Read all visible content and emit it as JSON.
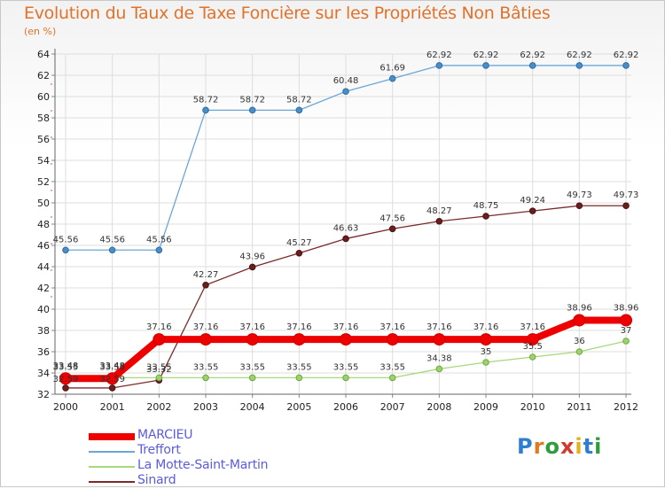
{
  "chart_data": {
    "type": "line",
    "title": "Evolution du Taux de Taxe Foncière sur les Propriétés Non Bâties",
    "unit_label": "(en %)",
    "xlabel": "",
    "ylabel": "",
    "x": [
      "2000",
      "2001",
      "2002",
      "2003",
      "2004",
      "2005",
      "2006",
      "2007",
      "2008",
      "2009",
      "2010",
      "2011",
      "2012"
    ],
    "ylim": [
      32,
      64
    ],
    "yticks": [
      "32",
      "34",
      "36",
      "38",
      "40",
      "42",
      "44",
      "46",
      "48",
      "50",
      "52",
      "54",
      "56",
      "58",
      "60",
      "62",
      "64"
    ],
    "grid": true,
    "legend_position": "bottom-left",
    "series": [
      {
        "name": "MARCIEU",
        "color": "#ee0000",
        "values": [
          33.48,
          33.48,
          37.16,
          37.16,
          37.16,
          37.16,
          37.16,
          37.16,
          37.16,
          37.16,
          37.16,
          38.96,
          38.96
        ],
        "labels": [
          "33.48",
          "33.48",
          "37.16",
          "37.16",
          "37.16",
          "37.16",
          "37.16",
          "37.16",
          "37.16",
          "37.16",
          "37.16",
          "38.96",
          "38.96"
        ]
      },
      {
        "name": "Treffort",
        "color": "#6aa7d6",
        "values": [
          45.56,
          45.56,
          45.56,
          58.72,
          58.72,
          58.72,
          60.48,
          61.69,
          62.92,
          62.92,
          62.92,
          62.92,
          62.92
        ],
        "labels": [
          "45.56",
          "45.56",
          "45.56",
          "58.72",
          "58.72",
          "58.72",
          "60.48",
          "61.69",
          "62.92",
          "62.92",
          "62.92",
          "62.92",
          "62.92"
        ]
      },
      {
        "name": "La Motte-Saint-Martin",
        "color": "#a8d878",
        "values": [
          33.55,
          33.55,
          33.55,
          33.55,
          33.55,
          33.55,
          33.55,
          33.55,
          34.38,
          35,
          35.5,
          36,
          37
        ],
        "labels": [
          "33.55",
          "33.55",
          "33.55",
          "33.55",
          "33.55",
          "33.55",
          "33.55",
          "33.55",
          "34.38",
          "35",
          "35.5",
          "36",
          "37"
        ]
      },
      {
        "name": "Sinard",
        "color": "#7a2a2a",
        "values": [
          32.59,
          32.59,
          33.32,
          42.27,
          43.96,
          45.27,
          46.63,
          47.56,
          48.27,
          48.75,
          49.24,
          49.73,
          49.73
        ],
        "labels": [
          "32.59",
          "32.59",
          "33.32",
          "42.27",
          "43.96",
          "45.27",
          "46.63",
          "47.56",
          "48.27",
          "48.75",
          "49.24",
          "49.73",
          "49.73"
        ]
      }
    ]
  },
  "logo": {
    "text": "Proxiti"
  }
}
